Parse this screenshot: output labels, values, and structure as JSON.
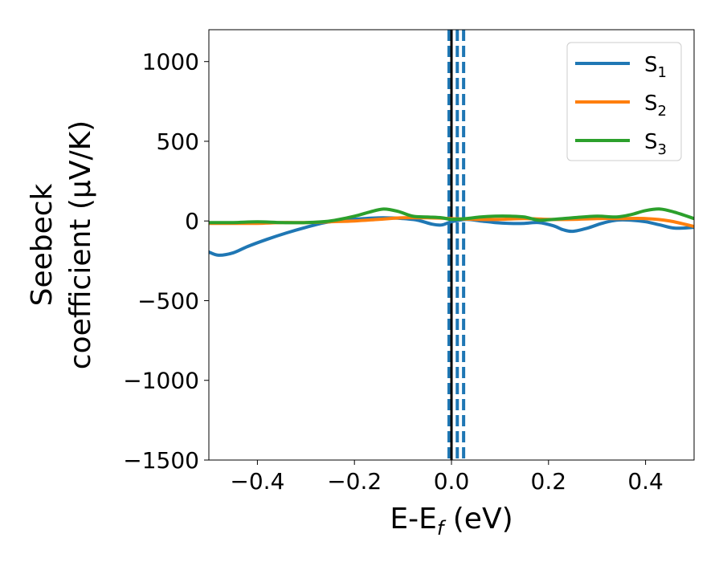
{
  "chart_data": {
    "type": "line",
    "xlabel": "E-E",
    "xlabel_sub": "f",
    "xlabel_unit": " (eV)",
    "ylabel_line1": "Seebeck",
    "ylabel_line2": "coefficient  (μV/K)",
    "xlim": [
      -0.5,
      0.5
    ],
    "ylim": [
      -1500,
      1200
    ],
    "xticks": [
      -0.4,
      -0.2,
      0.0,
      0.2,
      0.4
    ],
    "xtick_labels": [
      "−0.4",
      "−0.2",
      "0.0",
      "0.2",
      "0.4"
    ],
    "yticks": [
      1000,
      500,
      0,
      -500,
      -1000,
      -1500
    ],
    "ytick_labels": [
      "1000",
      "500",
      "0",
      "−500",
      "−1000",
      "−1500"
    ],
    "grid": false,
    "legend_position": "top-right",
    "vertical_lines": [
      {
        "x": -0.005,
        "style": "dashed",
        "color": "#1f77b4"
      },
      {
        "x": 0.0,
        "style": "solid",
        "color": "#000000"
      },
      {
        "x": 0.012,
        "style": "dashed",
        "color": "#1f77b4"
      },
      {
        "x": 0.025,
        "style": "dashed",
        "color": "#1f77b4"
      }
    ],
    "series": [
      {
        "name": "S",
        "sub": "1",
        "color": "#1f77b4",
        "x": [
          -0.5,
          -0.48,
          -0.45,
          -0.42,
          -0.38,
          -0.34,
          -0.3,
          -0.26,
          -0.22,
          -0.18,
          -0.14,
          -0.1,
          -0.07,
          -0.04,
          -0.02,
          0.0,
          0.03,
          0.06,
          0.09,
          0.12,
          0.15,
          0.18,
          0.21,
          0.23,
          0.25,
          0.28,
          0.31,
          0.34,
          0.37,
          0.4,
          0.43,
          0.46,
          0.5
        ],
        "values": [
          -195,
          -215,
          -200,
          -160,
          -115,
          -75,
          -40,
          -10,
          5,
          15,
          20,
          15,
          5,
          -20,
          -25,
          -5,
          10,
          0,
          -10,
          -15,
          -15,
          -10,
          -30,
          -55,
          -65,
          -45,
          -15,
          5,
          5,
          -5,
          -25,
          -45,
          -40
        ]
      },
      {
        "name": "S",
        "sub": "2",
        "color": "#ff7f0e",
        "x": [
          -0.5,
          -0.45,
          -0.4,
          -0.35,
          -0.3,
          -0.25,
          -0.2,
          -0.15,
          -0.1,
          -0.05,
          0.0,
          0.05,
          0.1,
          0.15,
          0.2,
          0.25,
          0.3,
          0.35,
          0.4,
          0.45,
          0.5
        ],
        "values": [
          -15,
          -15,
          -15,
          -10,
          -10,
          -5,
          0,
          10,
          20,
          20,
          15,
          10,
          10,
          15,
          10,
          10,
          15,
          15,
          15,
          0,
          -35
        ]
      },
      {
        "name": "S",
        "sub": "3",
        "color": "#2ca02c",
        "x": [
          -0.5,
          -0.45,
          -0.4,
          -0.35,
          -0.3,
          -0.25,
          -0.2,
          -0.17,
          -0.14,
          -0.11,
          -0.08,
          -0.05,
          -0.02,
          0.0,
          0.03,
          0.06,
          0.09,
          0.12,
          0.15,
          0.18,
          0.21,
          0.25,
          0.3,
          0.34,
          0.37,
          0.4,
          0.43,
          0.46,
          0.5
        ],
        "values": [
          -10,
          -10,
          -5,
          -10,
          -10,
          0,
          30,
          55,
          75,
          60,
          30,
          25,
          20,
          10,
          15,
          25,
          30,
          30,
          25,
          5,
          10,
          20,
          30,
          25,
          40,
          65,
          75,
          55,
          15
        ]
      }
    ]
  }
}
